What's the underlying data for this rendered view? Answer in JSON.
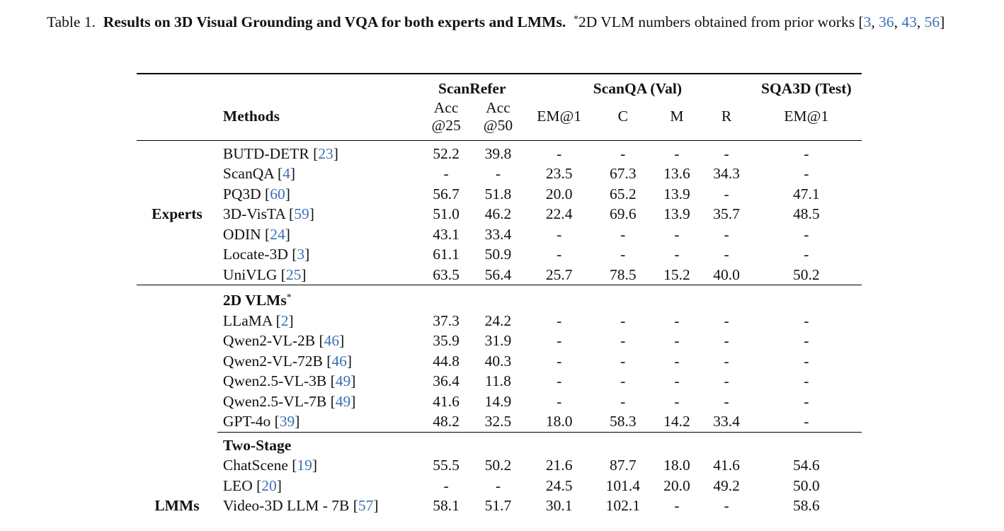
{
  "caption": {
    "label": "Table 1.",
    "bold": "Results on 3D Visual Grounding and VQA for both experts and LMMs.",
    "note_sup": "*",
    "note": "2D VLM numbers obtained from prior works",
    "cites": [
      "3",
      "36",
      "43",
      "56"
    ]
  },
  "header": {
    "groups": [
      "ScanRefer",
      "ScanQA (Val)",
      "SQA3D (Test)"
    ],
    "methods": "Methods",
    "acc25_a": "Acc",
    "acc25_b": "@25",
    "acc50_a": "Acc",
    "acc50_b": "@50",
    "em1": "EM@1",
    "c": "C",
    "m": "M",
    "r": "R",
    "sqa_em1": "EM@1"
  },
  "sections": {
    "experts": "Experts",
    "vlm2d": "2D VLMs",
    "vlm2d_sup": "*",
    "two_stage": "Two-Stage",
    "lmms": "LMMs"
  },
  "experts_rows": [
    {
      "name": "BUTD-DETR",
      "cite": "23",
      "v": [
        "52.2",
        "39.8",
        "-",
        "-",
        "-",
        "-",
        "-"
      ]
    },
    {
      "name": "ScanQA",
      "cite": "4",
      "v": [
        "-",
        "-",
        "23.5",
        "67.3",
        "13.6",
        "34.3",
        "-"
      ]
    },
    {
      "name": "PQ3D",
      "cite": "60",
      "v": [
        "56.7",
        "51.8",
        "20.0",
        "65.2",
        "13.9",
        "-",
        "47.1"
      ]
    },
    {
      "name": "3D-VisTA",
      "cite": "59",
      "v": [
        "51.0",
        "46.2",
        "22.4",
        "69.6",
        "13.9",
        "35.7",
        "48.5"
      ]
    },
    {
      "name": "ODIN",
      "cite": "24",
      "v": [
        "43.1",
        "33.4",
        "-",
        "-",
        "-",
        "-",
        "-"
      ]
    },
    {
      "name": "Locate-3D",
      "cite": "3",
      "v": [
        "61.1",
        "50.9",
        "-",
        "-",
        "-",
        "-",
        "-"
      ]
    },
    {
      "name": "UniVLG",
      "cite": "25",
      "v": [
        "63.5",
        "56.4",
        "25.7",
        "78.5",
        "15.2",
        "40.0",
        "50.2"
      ]
    }
  ],
  "vlm_rows": [
    {
      "name": "LLaMA",
      "cite": "2",
      "v": [
        "37.3",
        "24.2",
        "-",
        "-",
        "-",
        "-",
        "-"
      ]
    },
    {
      "name": "Qwen2-VL-2B",
      "cite": "46",
      "v": [
        "35.9",
        "31.9",
        "-",
        "-",
        "-",
        "-",
        "-"
      ]
    },
    {
      "name": "Qwen2-VL-72B",
      "cite": "46",
      "v": [
        "44.8",
        "40.3",
        "-",
        "-",
        "-",
        "-",
        "-"
      ]
    },
    {
      "name": "Qwen2.5-VL-3B",
      "cite": "49",
      "v": [
        "36.4",
        "11.8",
        "-",
        "-",
        "-",
        "-",
        "-"
      ]
    },
    {
      "name": "Qwen2.5-VL-7B",
      "cite": "49",
      "v": [
        "41.6",
        "14.9",
        "-",
        "-",
        "-",
        "-",
        "-"
      ]
    },
    {
      "name": "GPT-4o",
      "cite": "39",
      "v": [
        "48.2",
        "32.5",
        "18.0",
        "58.3",
        "14.2",
        "33.4",
        "-"
      ]
    }
  ],
  "two_stage_rows": [
    {
      "name": "ChatScene",
      "cite": "19",
      "v": [
        "55.5",
        "50.2",
        "21.6",
        "87.7",
        "18.0",
        "41.6",
        "54.6"
      ]
    },
    {
      "name": "LEO",
      "cite": "20",
      "v": [
        "-",
        "-",
        "24.5",
        "101.4",
        "20.0",
        "49.2",
        "50.0"
      ]
    },
    {
      "name": "Video-3D LLM - 7B",
      "cite": "57",
      "v": [
        "58.1",
        "51.7",
        "30.1",
        "102.1",
        "-",
        "-",
        "58.6"
      ]
    }
  ]
}
